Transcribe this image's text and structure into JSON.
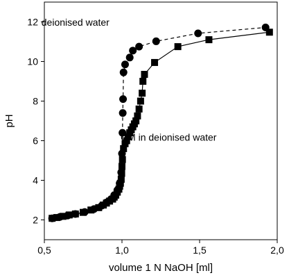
{
  "chart_data": {
    "type": "line",
    "xlabel": "volume 1 N NaOH [ml]",
    "ylabel": "pH",
    "xlim": [
      0.5,
      2.0
    ],
    "ylim": [
      1.0,
      13.0
    ],
    "x_ticks": [
      0.5,
      1.0,
      1.5,
      2.0
    ],
    "x_tick_labels": [
      "0,5",
      "1,0",
      "1,5",
      "2,0"
    ],
    "y_ticks": [
      2,
      4,
      6,
      8,
      10,
      12
    ],
    "y_tick_labels": [
      "2",
      "4",
      "6",
      "8",
      "10",
      "12"
    ],
    "grid": false,
    "legend": "none",
    "series": [
      {
        "name": "deionised water",
        "marker": "circle",
        "line_style": "dashed",
        "color": "#000000",
        "points": [
          [
            0.55,
            2.08
          ],
          [
            0.6,
            2.15
          ],
          [
            0.65,
            2.22
          ],
          [
            0.7,
            2.3
          ],
          [
            0.76,
            2.4
          ],
          [
            0.82,
            2.55
          ],
          [
            0.87,
            2.72
          ],
          [
            0.9,
            2.88
          ],
          [
            0.93,
            3.05
          ],
          [
            0.95,
            3.25
          ],
          [
            0.97,
            3.5
          ],
          [
            0.985,
            3.85
          ],
          [
            0.995,
            4.4
          ],
          [
            1.0,
            5.35
          ],
          [
            1.003,
            6.4
          ],
          [
            1.005,
            7.4
          ],
          [
            1.007,
            8.1
          ],
          [
            1.01,
            9.45
          ],
          [
            1.02,
            9.85
          ],
          [
            1.05,
            10.2
          ],
          [
            1.07,
            10.55
          ],
          [
            1.11,
            10.75
          ],
          [
            1.22,
            11.02
          ],
          [
            1.49,
            11.42
          ],
          [
            1.925,
            11.72
          ]
        ]
      },
      {
        "name": "CM in deionised water",
        "marker": "square",
        "line_style": "solid",
        "color": "#000000",
        "points": [
          [
            0.55,
            2.08
          ],
          [
            0.58,
            2.12
          ],
          [
            0.62,
            2.18
          ],
          [
            0.66,
            2.25
          ],
          [
            0.7,
            2.3
          ],
          [
            0.75,
            2.38
          ],
          [
            0.8,
            2.5
          ],
          [
            0.85,
            2.62
          ],
          [
            0.88,
            2.75
          ],
          [
            0.9,
            2.85
          ],
          [
            0.92,
            2.95
          ],
          [
            0.94,
            3.05
          ],
          [
            0.95,
            3.15
          ],
          [
            0.96,
            3.25
          ],
          [
            0.97,
            3.4
          ],
          [
            0.98,
            3.55
          ],
          [
            0.985,
            3.7
          ],
          [
            0.99,
            3.85
          ],
          [
            0.995,
            4.05
          ],
          [
            0.998,
            4.35
          ],
          [
            1.0,
            4.7
          ],
          [
            1.003,
            5.05
          ],
          [
            1.01,
            5.6
          ],
          [
            1.02,
            5.85
          ],
          [
            1.03,
            6.0
          ],
          [
            1.04,
            6.2
          ],
          [
            1.05,
            6.4
          ],
          [
            1.06,
            6.55
          ],
          [
            1.07,
            6.7
          ],
          [
            1.08,
            6.85
          ],
          [
            1.09,
            7.0
          ],
          [
            1.1,
            7.25
          ],
          [
            1.11,
            7.6
          ],
          [
            1.12,
            8.0
          ],
          [
            1.13,
            8.4
          ],
          [
            1.135,
            9.0
          ],
          [
            1.145,
            9.35
          ],
          [
            1.21,
            9.95
          ],
          [
            1.36,
            10.75
          ],
          [
            1.56,
            11.1
          ],
          [
            1.95,
            11.48
          ]
        ]
      }
    ],
    "annotations": [
      {
        "text": "deionised water",
        "x": 0.7,
        "y": 11.8
      },
      {
        "text": "CM in deionised water",
        "x": 1.3,
        "y": 6.0
      }
    ]
  }
}
